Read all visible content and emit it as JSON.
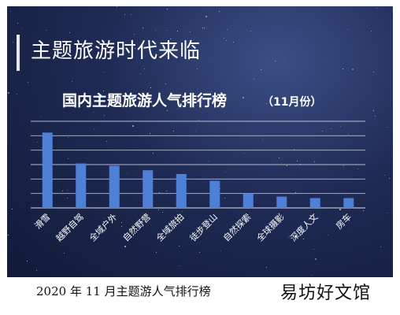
{
  "header": {
    "title": "主题旅游时代来临"
  },
  "caption": "2020 年 11 月主题游人气排行榜",
  "watermark": "易坊好文馆",
  "chart_data": {
    "type": "bar",
    "title": "国内主题旅游人气排行榜",
    "subtitle": "（11月份）",
    "categories": [
      "滑雪",
      "越野自驾",
      "全域户外",
      "自然野营",
      "全域旅拍",
      "徒步登山",
      "自然探索",
      "全球摄影",
      "深度人文",
      "房车"
    ],
    "values": [
      100,
      59,
      56,
      50,
      45,
      36,
      19,
      15,
      13,
      13
    ],
    "ylim": [
      0,
      115
    ],
    "grid": true,
    "bar_color": "#4f80d8",
    "grid_color": "#d0d6e4"
  }
}
